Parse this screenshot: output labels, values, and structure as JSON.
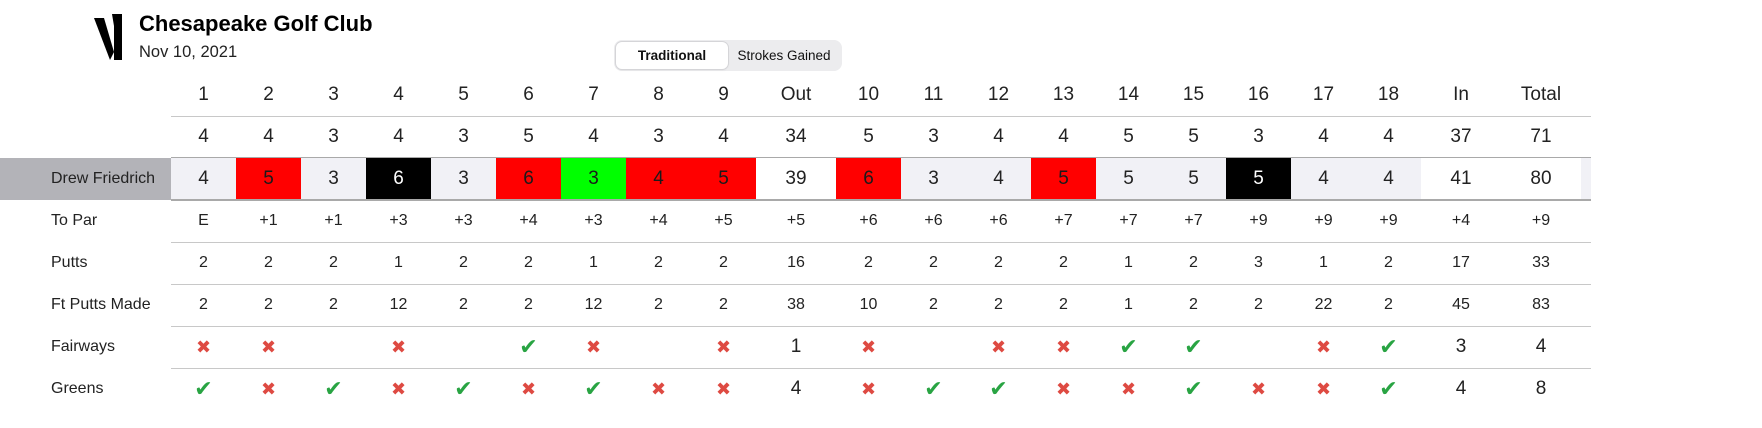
{
  "header": {
    "club_name": "Chesapeake Golf Club",
    "date": "Nov 10, 2021",
    "logo_icon": "v1-logo-icon"
  },
  "view_toggle": {
    "options": [
      "Traditional",
      "Strokes Gained"
    ],
    "selected": "Traditional"
  },
  "colors": {
    "bogey": "#ff0000",
    "double_or_worse": "#000000",
    "birdie": "#00ff00",
    "par_cell": "#f1f1f6",
    "miss_icon": "#de4a42",
    "hit_icon": "#29a443"
  },
  "scorecard": {
    "columns": [
      "1",
      "2",
      "3",
      "4",
      "5",
      "6",
      "7",
      "8",
      "9",
      "Out",
      "10",
      "11",
      "12",
      "13",
      "14",
      "15",
      "16",
      "17",
      "18",
      "In",
      "Total"
    ],
    "par": [
      "4",
      "4",
      "3",
      "4",
      "3",
      "5",
      "4",
      "3",
      "4",
      "34",
      "5",
      "3",
      "4",
      "4",
      "5",
      "5",
      "3",
      "4",
      "4",
      "37",
      "71"
    ],
    "player": {
      "name": "Drew Friedrich",
      "scores": [
        "4",
        "5",
        "3",
        "6",
        "3",
        "6",
        "3",
        "4",
        "5",
        "39",
        "6",
        "3",
        "4",
        "5",
        "5",
        "5",
        "5",
        "4",
        "4",
        "41",
        "80"
      ],
      "score_types": [
        "par",
        "bogey",
        "par",
        "double",
        "par",
        "bogey",
        "birdie",
        "bogey",
        "bogey",
        "total",
        "bogey",
        "par",
        "par",
        "bogey",
        "par",
        "par",
        "double",
        "par",
        "par",
        "total",
        "total"
      ]
    },
    "stat_rows": [
      {
        "label": "To Par",
        "values": [
          "E",
          "+1",
          "+1",
          "+3",
          "+3",
          "+4",
          "+3",
          "+4",
          "+5",
          "+5",
          "+6",
          "+6",
          "+6",
          "+7",
          "+7",
          "+7",
          "+9",
          "+9",
          "+9",
          "+4",
          "+9"
        ]
      },
      {
        "label": "Putts",
        "values": [
          "2",
          "2",
          "2",
          "1",
          "2",
          "2",
          "1",
          "2",
          "2",
          "16",
          "2",
          "2",
          "2",
          "2",
          "1",
          "2",
          "3",
          "1",
          "2",
          "17",
          "33"
        ]
      },
      {
        "label": "Ft Putts Made",
        "values": [
          "2",
          "2",
          "2",
          "12",
          "2",
          "2",
          "12",
          "2",
          "2",
          "38",
          "10",
          "2",
          "2",
          "2",
          "1",
          "2",
          "2",
          "22",
          "2",
          "45",
          "83"
        ]
      }
    ],
    "icon_rows": [
      {
        "label": "Fairways",
        "values": [
          "miss",
          "miss",
          "",
          "miss",
          "",
          "hit",
          "miss",
          "",
          "miss",
          "1",
          "miss",
          "",
          "miss",
          "miss",
          "hit",
          "hit",
          "",
          "miss",
          "hit",
          "3",
          "4"
        ]
      },
      {
        "label": "Greens",
        "values": [
          "hit",
          "miss",
          "hit",
          "miss",
          "hit",
          "miss",
          "hit",
          "miss",
          "miss",
          "4",
          "miss",
          "hit",
          "hit",
          "miss",
          "miss",
          "hit",
          "miss",
          "miss",
          "hit",
          "4",
          "8"
        ]
      }
    ]
  }
}
